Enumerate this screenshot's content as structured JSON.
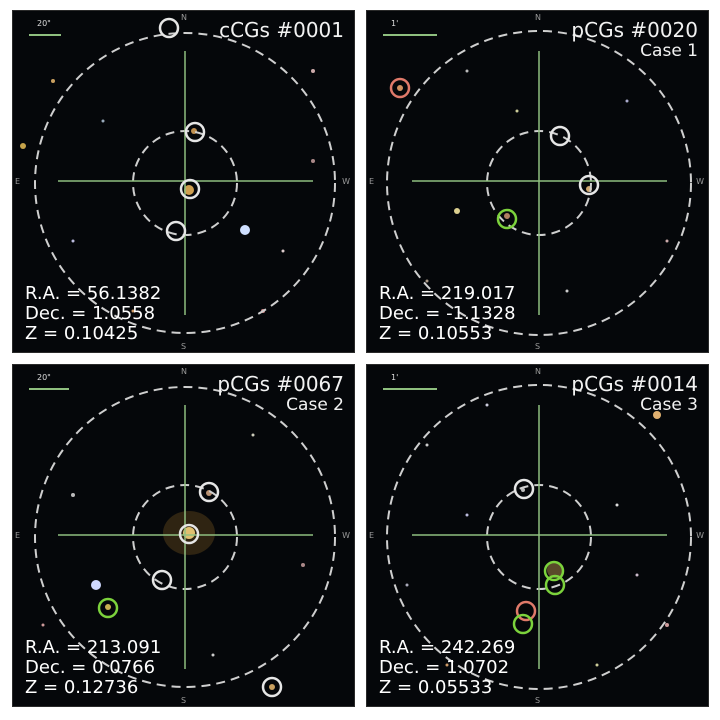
{
  "panels": [
    {
      "title": "cCGs #0001",
      "subtitle": "",
      "scale": "20\"",
      "ra": "R.A. = 56.1382",
      "dec": "Dec. = 1.0558",
      "z": "Z = 0.10425",
      "directions": {
        "n": "N",
        "s": "S",
        "e": "E",
        "w": "W"
      }
    },
    {
      "title": "pCGs #0020",
      "subtitle": "Case 1",
      "scale": "1'",
      "ra": "R.A. = 219.017",
      "dec": "Dec. = -1.1328",
      "z": "Z = 0.10553",
      "directions": {
        "n": "N",
        "s": "S",
        "e": "E",
        "w": "W"
      }
    },
    {
      "title": "pCGs #0067",
      "subtitle": "Case 2",
      "scale": "20\"",
      "ra": "R.A. = 213.091",
      "dec": "Dec. = 0.0766",
      "z": "Z = 0.12736",
      "directions": {
        "n": "N",
        "s": "S",
        "e": "E",
        "w": "W"
      }
    },
    {
      "title": "pCGs #0014",
      "subtitle": "Case 3",
      "scale": "1'",
      "ra": "R.A. = 242.269",
      "dec": "Dec. = 1.0702",
      "z": "Z = 0.05533",
      "directions": {
        "n": "N",
        "s": "S",
        "e": "E",
        "w": "W"
      }
    }
  ],
  "colors": {
    "member_circle": "#e6e6e6",
    "green_circle": "#7cd23c",
    "red_circle": "#e07a6a",
    "crosshair": "#8fbf7f",
    "dashed": "#cfcfcf"
  }
}
